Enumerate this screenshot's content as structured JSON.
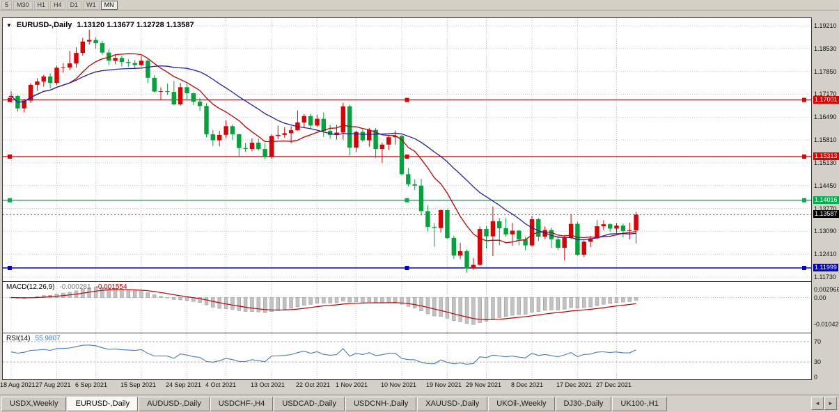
{
  "app": {
    "background": "#d4d0c8"
  },
  "toolbar": {
    "timeframes": [
      {
        "label": "5",
        "active": false
      },
      {
        "label": "M30",
        "active": false
      },
      {
        "label": "H1",
        "active": false
      },
      {
        "label": "H4",
        "active": false
      },
      {
        "label": "D1",
        "active": false
      },
      {
        "label": "W1",
        "active": false
      },
      {
        "label": "MN",
        "active": true
      }
    ]
  },
  "chart": {
    "dropdown_icon": "▼",
    "title": "EURUSD-,Daily",
    "ohlc_text": "1.13120 1.13677 1.12728 1.13587"
  },
  "chart_data": {
    "type": "candlestick",
    "symbol": "EURUSD-",
    "timeframe": "Daily",
    "current_bar": {
      "open": 1.1312,
      "high": 1.13677,
      "low": 1.12728,
      "close": 1.13587
    },
    "colors": {
      "up": "#dd0000",
      "down": "#00a43a",
      "ma_fast": "#c00000",
      "ma_slow": "#2020a0",
      "macd_signal": "#c00000",
      "rsi": "#3f7cc0"
    },
    "y_axis": {
      "labels": [
        "1.19210",
        "1.18530",
        "1.17850",
        "1.17170",
        "1.16490",
        "1.15810",
        "1.15130",
        "1.14450",
        "1.13770",
        "1.13090",
        "1.12410",
        "1.11730"
      ]
    },
    "x_axis": {
      "tick_indices": [
        0,
        7,
        13,
        20,
        27,
        33,
        40,
        47,
        53,
        60,
        67,
        73,
        80,
        87,
        93
      ],
      "labels": [
        "18 Aug 2021",
        "27 Aug 2021",
        "6 Sep 2021",
        "15 Sep 2021",
        "24 Sep 2021",
        "4 Oct 2021",
        "13 Oct 2021",
        "22 Oct 2021",
        "1 Nov 2021",
        "10 Nov 2021",
        "19 Nov 2021",
        "29 Nov 2021",
        "8 Dec 2021",
        "17 Dec 2021",
        "27 Dec 2021"
      ]
    },
    "levels": [
      {
        "price": 1.17001,
        "label": "1.17001",
        "color": "#e00000"
      },
      {
        "price": 1.15313,
        "label": "1.15313",
        "color": "#e00000"
      },
      {
        "price": 1.14016,
        "label": "1.14016",
        "color": "#00b050"
      },
      {
        "price": 1.11999,
        "label": "1.11999",
        "color": "#0000cd"
      }
    ],
    "current_price": {
      "value": 1.13587,
      "label": "1.13587"
    },
    "moving_averages": [
      {
        "period": 10,
        "type": "sma",
        "color": "#c00000"
      },
      {
        "period": 21,
        "type": "sma",
        "color": "#2020a0"
      }
    ],
    "candles": [
      [
        1.1709,
        1.1726,
        1.1694,
        1.1712
      ],
      [
        1.1712,
        1.1715,
        1.1665,
        1.1675
      ],
      [
        1.1675,
        1.1704,
        1.1663,
        1.1698
      ],
      [
        1.1698,
        1.175,
        1.1691,
        1.1745
      ],
      [
        1.1745,
        1.1765,
        1.1727,
        1.1755
      ],
      [
        1.1755,
        1.1775,
        1.174,
        1.177
      ],
      [
        1.177,
        1.1779,
        1.1735,
        1.1751
      ],
      [
        1.1751,
        1.1802,
        1.1744,
        1.1796
      ],
      [
        1.1796,
        1.181,
        1.1781,
        1.1797
      ],
      [
        1.1797,
        1.1846,
        1.1789,
        1.1809
      ],
      [
        1.1809,
        1.1857,
        1.1796,
        1.184
      ],
      [
        1.184,
        1.1885,
        1.1832,
        1.1874
      ],
      [
        1.1874,
        1.1909,
        1.1865,
        1.1879
      ],
      [
        1.1879,
        1.1887,
        1.1853,
        1.1869
      ],
      [
        1.1869,
        1.1876,
        1.1835,
        1.1841
      ],
      [
        1.1841,
        1.1851,
        1.1804,
        1.1817
      ],
      [
        1.1817,
        1.1836,
        1.1806,
        1.1825
      ],
      [
        1.1825,
        1.1833,
        1.18,
        1.1813
      ],
      [
        1.1813,
        1.1822,
        1.1798,
        1.181
      ],
      [
        1.181,
        1.1819,
        1.1793,
        1.1804
      ],
      [
        1.1804,
        1.1831,
        1.18,
        1.1817
      ],
      [
        1.1817,
        1.1822,
        1.175,
        1.1766
      ],
      [
        1.1766,
        1.1774,
        1.1722,
        1.1725
      ],
      [
        1.1725,
        1.1737,
        1.17,
        1.1726
      ],
      [
        1.1726,
        1.1749,
        1.1715,
        1.1724
      ],
      [
        1.1724,
        1.1756,
        1.1684,
        1.1687
      ],
      [
        1.1687,
        1.1751,
        1.1683,
        1.1738
      ],
      [
        1.1738,
        1.1748,
        1.1701,
        1.172
      ],
      [
        1.172,
        1.1722,
        1.1685,
        1.1695
      ],
      [
        1.1695,
        1.1705,
        1.1667,
        1.1682
      ],
      [
        1.1682,
        1.169,
        1.1589,
        1.1598
      ],
      [
        1.1598,
        1.1611,
        1.1563,
        1.158
      ],
      [
        1.158,
        1.1608,
        1.1562,
        1.1596
      ],
      [
        1.1596,
        1.164,
        1.1587,
        1.1622
      ],
      [
        1.1622,
        1.1627,
        1.1581,
        1.1598
      ],
      [
        1.1598,
        1.16,
        1.1529,
        1.1557
      ],
      [
        1.1557,
        1.1572,
        1.1546,
        1.1554
      ],
      [
        1.1554,
        1.1586,
        1.1547,
        1.1573
      ],
      [
        1.1573,
        1.1585,
        1.1549,
        1.1554
      ],
      [
        1.1554,
        1.1572,
        1.1524,
        1.153
      ],
      [
        1.153,
        1.1598,
        1.1525,
        1.1593
      ],
      [
        1.1593,
        1.1624,
        1.1583,
        1.1596
      ],
      [
        1.1596,
        1.1619,
        1.1588,
        1.1601
      ],
      [
        1.1601,
        1.1622,
        1.1571,
        1.161
      ],
      [
        1.161,
        1.1669,
        1.1609,
        1.1633
      ],
      [
        1.1633,
        1.1658,
        1.1617,
        1.1652
      ],
      [
        1.1652,
        1.1659,
        1.1616,
        1.1624
      ],
      [
        1.1624,
        1.1656,
        1.162,
        1.1644
      ],
      [
        1.1644,
        1.1663,
        1.159,
        1.1608
      ],
      [
        1.1608,
        1.1626,
        1.1585,
        1.1596
      ],
      [
        1.1596,
        1.1626,
        1.1582,
        1.1603
      ],
      [
        1.1603,
        1.1692,
        1.1582,
        1.1681
      ],
      [
        1.1681,
        1.1686,
        1.1535,
        1.1558
      ],
      [
        1.1558,
        1.1609,
        1.1545,
        1.1605
      ],
      [
        1.1605,
        1.1612,
        1.1575,
        1.158
      ],
      [
        1.158,
        1.1617,
        1.1561,
        1.1611
      ],
      [
        1.1611,
        1.1616,
        1.1527,
        1.1554
      ],
      [
        1.1554,
        1.1573,
        1.1513,
        1.1567
      ],
      [
        1.1567,
        1.1595,
        1.1551,
        1.1589
      ],
      [
        1.1589,
        1.1609,
        1.1567,
        1.1593
      ],
      [
        1.1593,
        1.1596,
        1.1475,
        1.1479
      ],
      [
        1.1479,
        1.1497,
        1.1443,
        1.1449
      ],
      [
        1.1449,
        1.1464,
        1.1432,
        1.1445
      ],
      [
        1.1445,
        1.1465,
        1.1356,
        1.1369
      ],
      [
        1.1369,
        1.1386,
        1.1309,
        1.1322
      ],
      [
        1.1322,
        1.1333,
        1.1263,
        1.1319
      ],
      [
        1.1319,
        1.1374,
        1.1305,
        1.1372
      ],
      [
        1.1372,
        1.1374,
        1.1287,
        1.1289
      ],
      [
        1.1289,
        1.1296,
        1.1227,
        1.1237
      ],
      [
        1.1237,
        1.1275,
        1.1226,
        1.125
      ],
      [
        1.125,
        1.1255,
        1.1186,
        1.1199
      ],
      [
        1.1199,
        1.123,
        1.1194,
        1.1209
      ],
      [
        1.1209,
        1.1323,
        1.1206,
        1.1316
      ],
      [
        1.1316,
        1.1325,
        1.1258,
        1.1294
      ],
      [
        1.1294,
        1.1383,
        1.1235,
        1.1339
      ],
      [
        1.1339,
        1.1349,
        1.1267,
        1.1318
      ],
      [
        1.1318,
        1.1348,
        1.1293,
        1.13
      ],
      [
        1.13,
        1.1334,
        1.1266,
        1.1311
      ],
      [
        1.1311,
        1.1313,
        1.1267,
        1.1285
      ],
      [
        1.1285,
        1.1292,
        1.1253,
        1.1267
      ],
      [
        1.1267,
        1.1355,
        1.1263,
        1.1345
      ],
      [
        1.1345,
        1.1348,
        1.128,
        1.1293
      ],
      [
        1.1293,
        1.1324,
        1.1286,
        1.1313
      ],
      [
        1.1313,
        1.132,
        1.126,
        1.1285
      ],
      [
        1.1285,
        1.1298,
        1.1253,
        1.126
      ],
      [
        1.126,
        1.1298,
        1.1222,
        1.129
      ],
      [
        1.129,
        1.136,
        1.1285,
        1.1331
      ],
      [
        1.1331,
        1.1338,
        1.1236,
        1.1239
      ],
      [
        1.1239,
        1.1282,
        1.1233,
        1.1278
      ],
      [
        1.1278,
        1.1295,
        1.1262,
        1.1288
      ],
      [
        1.1288,
        1.1343,
        1.1285,
        1.1324
      ],
      [
        1.1324,
        1.1342,
        1.1312,
        1.133
      ],
      [
        1.133,
        1.1333,
        1.1308,
        1.1317
      ],
      [
        1.1317,
        1.1333,
        1.1304,
        1.1326
      ],
      [
        1.1326,
        1.1332,
        1.1291,
        1.131
      ],
      [
        1.131,
        1.1335,
        1.1285,
        1.1312
      ],
      [
        1.1312,
        1.13677,
        1.12728,
        1.13587
      ]
    ],
    "indicators": {
      "macd": {
        "name": "MACD(12,26,9)",
        "fast": 12,
        "slow": 26,
        "signal": 9,
        "value_main": "-0.000281",
        "value_signal": "-0.001554",
        "axis_labels": [
          "0.002966",
          "0.00",
          "-0.010425"
        ]
      },
      "rsi": {
        "name": "RSI(14)",
        "period": 14,
        "value": "55.9807",
        "levels": [
          70,
          30
        ],
        "axis_labels": [
          "70",
          "30",
          "0"
        ]
      }
    }
  },
  "tabs": {
    "items": [
      {
        "label": "USDX,Weekly",
        "active": false
      },
      {
        "label": "EURUSD-,Daily",
        "active": true
      },
      {
        "label": "AUDUSD-,Daily",
        "active": false
      },
      {
        "label": "USDCHF-,H4",
        "active": false
      },
      {
        "label": "USDCAD-,Daily",
        "active": false
      },
      {
        "label": "USDCNH-,Daily",
        "active": false
      },
      {
        "label": "XAUUSD-,Daily",
        "active": false
      },
      {
        "label": "UKOil-,Weekly",
        "active": false
      },
      {
        "label": "DJ30-,Daily",
        "active": false
      },
      {
        "label": "UK100-,H1",
        "active": false
      }
    ],
    "scroll_left": "◄",
    "scroll_right": "►"
  }
}
